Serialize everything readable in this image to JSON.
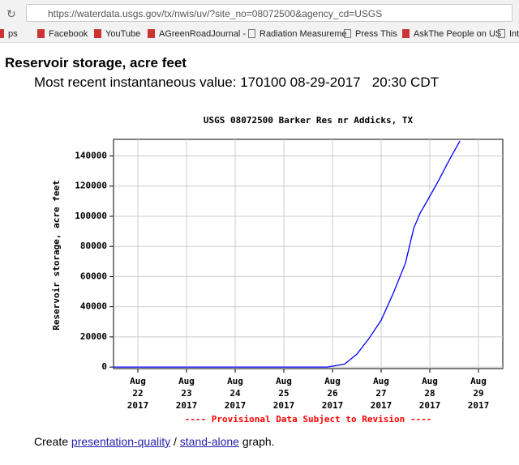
{
  "browser": {
    "url": "https://waterdata.usgs.gov/tx/nwis/uv/?site_no=08072500&agency_cd=USGS",
    "bookmarks": [
      "ps",
      "Facebook",
      "YouTube",
      "AGreenRoadJournal -",
      "Radiation Measureme",
      "Press This",
      "AskThe People on US",
      "Int"
    ]
  },
  "page": {
    "heading": "Reservoir storage, acre feet",
    "subheading": "Most recent instantaneous value: 170100 08-29-2017   20:30 CDT",
    "footer": {
      "before": "Create ",
      "link1": "presentation-quality",
      "between": " / ",
      "link2": "stand-alone",
      "after": " graph."
    }
  },
  "chart_data": {
    "type": "line",
    "title": "USGS 08072500 Barker Res nr Addicks, TX",
    "y_label": "Reservoir storage, acre feet",
    "note": "---- Provisional Data Subject to Revision ----",
    "x": [
      21.5,
      25.9,
      26.25,
      26.5,
      26.75,
      27.0,
      27.25,
      27.5,
      27.67,
      27.8,
      27.97,
      28.17,
      28.42,
      28.62
    ],
    "values": [
      0,
      0,
      2000,
      8500,
      19000,
      31000,
      49000,
      69000,
      92000,
      102000,
      111500,
      123000,
      138500,
      150000
    ],
    "color": "#0000ff",
    "xlim": [
      21.5,
      29.5
    ],
    "xticks": [
      {
        "value": 22,
        "label": "Aug\n22\n2017"
      },
      {
        "value": 23,
        "label": "Aug\n23\n2017"
      },
      {
        "value": 24,
        "label": "Aug\n24\n2017"
      },
      {
        "value": 25,
        "label": "Aug\n25\n2017"
      },
      {
        "value": 26,
        "label": "Aug\n26\n2017"
      },
      {
        "value": 27,
        "label": "Aug\n27\n2017"
      },
      {
        "value": 28,
        "label": "Aug\n28\n2017"
      },
      {
        "value": 29,
        "label": "Aug\n29\n2017"
      }
    ],
    "ylim": [
      -1000,
      151000
    ],
    "yticks": [
      0,
      20000,
      40000,
      60000,
      80000,
      100000,
      120000,
      140000
    ],
    "grid": true
  }
}
